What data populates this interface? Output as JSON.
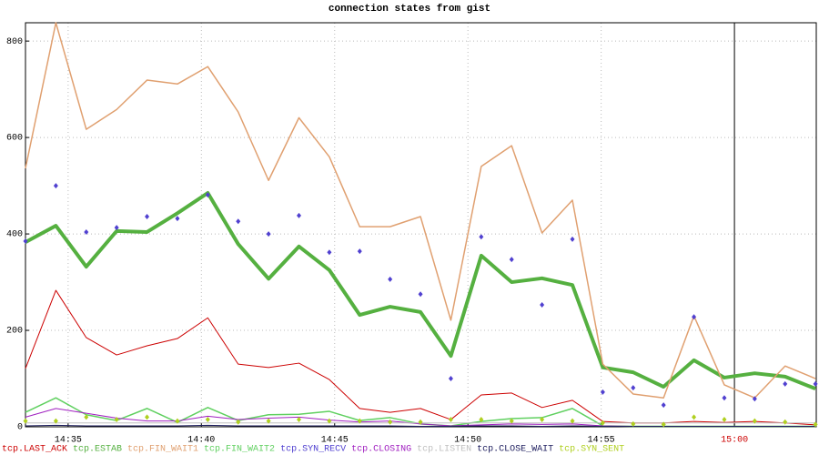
{
  "chart_data": {
    "type": "line",
    "title": "connection states from gist",
    "x": [
      33.4,
      34.54,
      35.68,
      36.82,
      37.96,
      39.1,
      40.24,
      41.38,
      42.52,
      43.66,
      44.8,
      45.94,
      47.08,
      48.22,
      49.36,
      50.5,
      51.64,
      52.78,
      53.92,
      55.06,
      56.2,
      57.34,
      58.48,
      59.62,
      60.76,
      61.9,
      63.04
    ],
    "xlim": [
      33.4,
      63.07
    ],
    "xticks": [
      {
        "value": 35,
        "label": "14:35"
      },
      {
        "value": 40,
        "label": "14:40"
      },
      {
        "value": 45,
        "label": "14:45"
      },
      {
        "value": 50,
        "label": "14:50"
      },
      {
        "value": 55,
        "label": "14:55"
      },
      {
        "value": 60,
        "label": "15:00",
        "color": "#cc0000"
      }
    ],
    "ylim": [
      0,
      838
    ],
    "yticks": [
      0,
      200,
      400,
      600,
      800
    ],
    "grid": true,
    "series": [
      {
        "name": "tcp.LAST_ACK",
        "color": "#cc0000",
        "style": "line",
        "width": 1,
        "values": [
          121,
          283,
          185,
          149,
          168,
          183,
          226,
          130,
          123,
          132,
          98,
          38,
          30,
          38,
          15,
          66,
          70,
          40,
          55,
          11,
          8,
          8,
          11,
          9,
          11,
          8,
          4
        ]
      },
      {
        "name": "tcp.ESTAB",
        "color": "#55b040",
        "style": "line",
        "width": 4,
        "values": [
          383,
          417,
          332,
          406,
          404,
          443,
          485,
          379,
          307,
          374,
          325,
          232,
          249,
          238,
          147,
          355,
          300,
          308,
          294,
          123,
          113,
          83,
          138,
          102,
          111,
          104,
          79
        ]
      },
      {
        "name": "tcp.FIN_WAIT1",
        "color": "#e0a070",
        "style": "line",
        "width": 1.5,
        "values": [
          536,
          838,
          617,
          658,
          719,
          711,
          747,
          653,
          511,
          641,
          560,
          415,
          415,
          436,
          221,
          540,
          583,
          402,
          470,
          130,
          68,
          60,
          230,
          87,
          60,
          126,
          100
        ]
      },
      {
        "name": "tcp.FIN_WAIT2",
        "color": "#60d060",
        "style": "line",
        "width": 1.5,
        "values": [
          30,
          60,
          25,
          13,
          38,
          9,
          40,
          13,
          25,
          26,
          32,
          13,
          19,
          6,
          2,
          11,
          17,
          19,
          38,
          2,
          1,
          1,
          1,
          1,
          1,
          1,
          1
        ]
      },
      {
        "name": "tcp.SYN_RECV",
        "color": "#5040d0",
        "style": "points",
        "width": 1,
        "values": [
          385,
          500,
          404,
          413,
          436,
          432,
          481,
          426,
          400,
          438,
          362,
          364,
          306,
          275,
          100,
          394,
          347,
          253,
          389,
          72,
          81,
          45,
          228,
          60,
          58,
          89,
          89
        ]
      },
      {
        "name": "tcp.CLOSING",
        "color": "#a020c0",
        "style": "line",
        "width": 1,
        "values": [
          20,
          38,
          28,
          18,
          12,
          12,
          22,
          15,
          18,
          20,
          14,
          10,
          12,
          6,
          2,
          4,
          6,
          5,
          6,
          2,
          1,
          1,
          1,
          1,
          1,
          1,
          1
        ]
      },
      {
        "name": "tcp.LISTEN",
        "color": "#c0c0c0",
        "style": "line",
        "width": 1,
        "values": [
          8,
          8,
          8,
          8,
          8,
          8,
          8,
          8,
          8,
          8,
          8,
          8,
          8,
          8,
          8,
          8,
          8,
          8,
          8,
          8,
          8,
          8,
          8,
          8,
          8,
          8,
          8
        ]
      },
      {
        "name": "tcp.CLOSE_WAIT",
        "color": "#202060",
        "style": "line",
        "width": 1,
        "values": [
          2,
          3,
          2,
          2,
          2,
          2,
          3,
          2,
          2,
          2,
          2,
          2,
          2,
          1,
          1,
          2,
          2,
          1,
          2,
          1,
          1,
          1,
          1,
          1,
          1,
          1,
          1
        ]
      },
      {
        "name": "tcp.SYN_SENT",
        "color": "#b0d020",
        "style": "points",
        "width": 1,
        "values": [
          12,
          12,
          20,
          15,
          20,
          12,
          15,
          10,
          12,
          15,
          12,
          12,
          10,
          10,
          15,
          15,
          12,
          15,
          12,
          8,
          6,
          5,
          20,
          15,
          12,
          10,
          5
        ]
      }
    ]
  }
}
